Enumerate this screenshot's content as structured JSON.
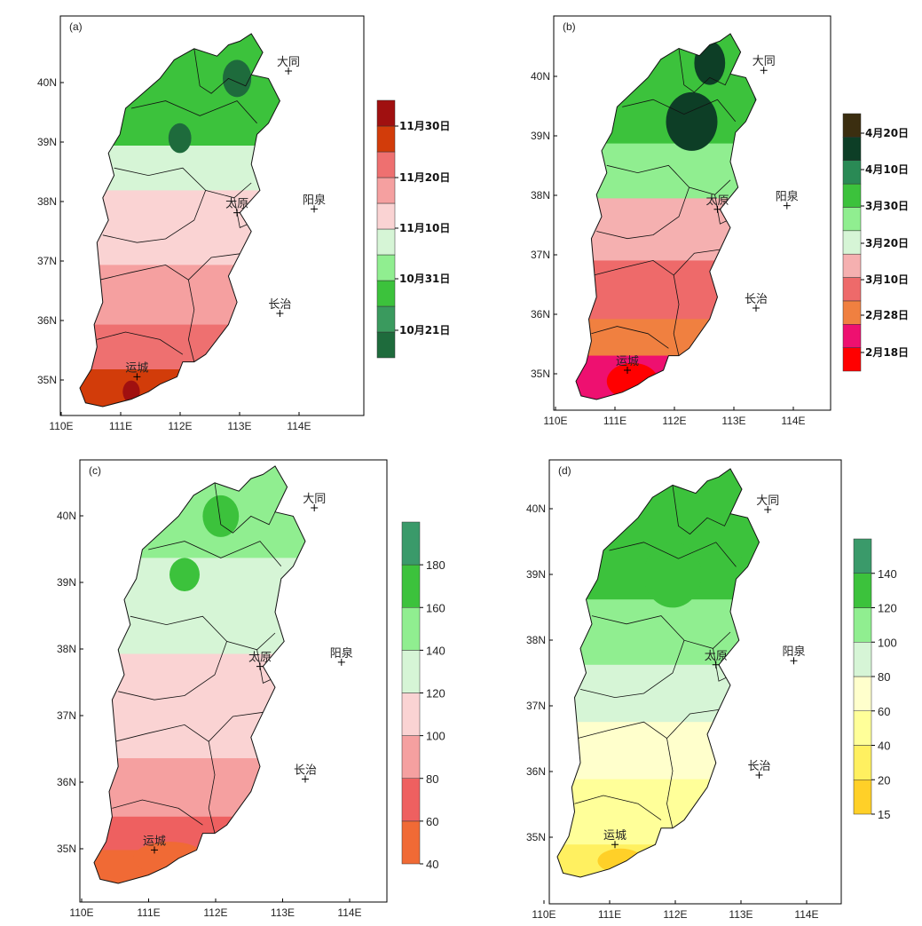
{
  "panels": [
    {
      "label": "(a)",
      "x_ticks": [
        "110E",
        "111E",
        "112E",
        "113E",
        "114E"
      ],
      "y_ticks": [
        "35N",
        "36N",
        "37N",
        "38N",
        "39N",
        "40N"
      ],
      "legend": {
        "style": "labels",
        "colors": [
          "#1e6b3c",
          "#3a9a5e",
          "#3cc23c",
          "#90ee90",
          "#d6f5d6",
          "#fad3d3",
          "#f5a0a0",
          "#ee7070",
          "#d23c0a",
          "#a01010"
        ],
        "labels": [
          "10月21日",
          "10月31日",
          "11月10日",
          "11月20日",
          "11月30日"
        ]
      },
      "cities": [
        "大同",
        "太原",
        "阳泉",
        "长治",
        "运城"
      ]
    },
    {
      "label": "(b)",
      "x_ticks": [
        "110E",
        "111E",
        "112E",
        "113E",
        "114E"
      ],
      "y_ticks": [
        "35N",
        "36N",
        "37N",
        "38N",
        "39N",
        "40N"
      ],
      "legend": {
        "style": "labels",
        "colors": [
          "#ff0000",
          "#ee1070",
          "#f08040",
          "#ee6a6a",
          "#f5b0b0",
          "#d6f5d6",
          "#90ee90",
          "#3cc23c",
          "#2a8a55",
          "#0d3e26",
          "#3b2e10"
        ],
        "labels": [
          "2月18日",
          "2月28日",
          "3月10日",
          "3月20日",
          "3月30日",
          "4月10日",
          "4月20日"
        ]
      },
      "cities": [
        "大同",
        "太原",
        "阳泉",
        "长治",
        "运城"
      ]
    },
    {
      "label": "(c)",
      "x_ticks": [
        "110E",
        "111E",
        "112E",
        "113E",
        "114E"
      ],
      "y_ticks": [
        "35N",
        "36N",
        "37N",
        "38N",
        "39N",
        "40N"
      ],
      "legend": {
        "style": "numbers",
        "colors": [
          "#f06a35",
          "#ee6060",
          "#f5a0a0",
          "#fad3d3",
          "#d6f5d6",
          "#90ee90",
          "#3cc23c",
          "#3a9a6a"
        ],
        "labels": [
          "40",
          "60",
          "80",
          "100",
          "120",
          "140",
          "160",
          "180"
        ]
      },
      "cities": [
        "大同",
        "太原",
        "阳泉",
        "长治",
        "运城"
      ]
    },
    {
      "label": "(d)",
      "x_ticks": [
        "110E",
        "111E",
        "112E",
        "113E",
        "114E"
      ],
      "y_ticks": [
        "35N",
        "36N",
        "37N",
        "38N",
        "39N",
        "40N"
      ],
      "legend": {
        "style": "numbers",
        "colors": [
          "#ffd028",
          "#fff060",
          "#ffff99",
          "#ffffcc",
          "#d6f5d6",
          "#90ee90",
          "#3cc23c",
          "#3a9a6a"
        ],
        "labels": [
          "15",
          "20",
          "40",
          "60",
          "80",
          "100",
          "120",
          "140"
        ]
      },
      "cities": [
        "大同",
        "太原",
        "阳泉",
        "长治",
        "运城"
      ]
    }
  ]
}
